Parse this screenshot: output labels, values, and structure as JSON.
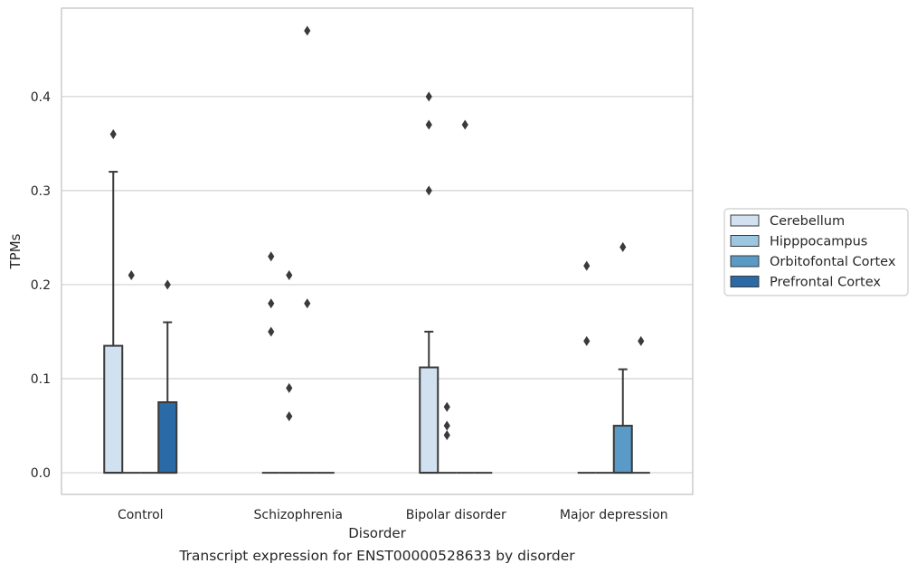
{
  "caption": "Transcript expression for ENST00000528633 by disorder",
  "chart_data": {
    "type": "box",
    "title": "",
    "xlabel": "Disorder",
    "ylabel": "TPMs",
    "ylim": [
      -0.023,
      0.494
    ],
    "yticks": [
      0.0,
      0.1,
      0.2,
      0.3,
      0.4
    ],
    "ytick_labels": [
      "0.0",
      "0.1",
      "0.2",
      "0.3",
      "0.4"
    ],
    "grid": "horizontal",
    "legend_position": "right",
    "categories": [
      "Control",
      "Schizophrenia",
      "Bipolar disorder",
      "Major depression"
    ],
    "series": [
      {
        "name": "Cerebellum",
        "color": "#d1e1ef",
        "boxes": [
          {
            "q1": 0.0,
            "median": 0.0,
            "q3": 0.135,
            "whislo": 0.0,
            "whishi": 0.32,
            "fliers": [
              0.36
            ]
          },
          {
            "q1": 0.0,
            "median": 0.0,
            "q3": 0.0,
            "whislo": 0.0,
            "whishi": 0.0,
            "fliers": [
              0.23,
              0.18,
              0.15
            ]
          },
          {
            "q1": 0.0,
            "median": 0.0,
            "q3": 0.112,
            "whislo": 0.0,
            "whishi": 0.15,
            "fliers": [
              0.4,
              0.37,
              0.3
            ]
          },
          {
            "q1": 0.0,
            "median": 0.0,
            "q3": 0.0,
            "whislo": 0.0,
            "whishi": 0.0,
            "fliers": [
              0.22,
              0.14
            ]
          }
        ]
      },
      {
        "name": "Hipppocampus",
        "color": "#9dc6e0",
        "boxes": [
          {
            "q1": 0.0,
            "median": 0.0,
            "q3": 0.0,
            "whislo": 0.0,
            "whishi": 0.0,
            "fliers": [
              0.21
            ]
          },
          {
            "q1": 0.0,
            "median": 0.0,
            "q3": 0.0,
            "whislo": 0.0,
            "whishi": 0.0,
            "fliers": [
              0.21,
              0.09,
              0.06
            ]
          },
          {
            "q1": 0.0,
            "median": 0.0,
            "q3": 0.0,
            "whislo": 0.0,
            "whishi": 0.0,
            "fliers": [
              0.07,
              0.05,
              0.04
            ]
          },
          {
            "q1": 0.0,
            "median": 0.0,
            "q3": 0.0,
            "whislo": 0.0,
            "whishi": 0.0,
            "fliers": []
          }
        ]
      },
      {
        "name": "Orbitofontal Cortex",
        "color": "#5a9ac6",
        "boxes": [
          {
            "q1": 0.0,
            "median": 0.0,
            "q3": 0.0,
            "whislo": 0.0,
            "whishi": 0.0,
            "fliers": []
          },
          {
            "q1": 0.0,
            "median": 0.0,
            "q3": 0.0,
            "whislo": 0.0,
            "whishi": 0.0,
            "fliers": [
              0.47,
              0.18
            ]
          },
          {
            "q1": 0.0,
            "median": 0.0,
            "q3": 0.0,
            "whislo": 0.0,
            "whishi": 0.0,
            "fliers": [
              0.37
            ]
          },
          {
            "q1": 0.0,
            "median": 0.0,
            "q3": 0.05,
            "whislo": 0.0,
            "whishi": 0.11,
            "fliers": [
              0.24
            ]
          }
        ]
      },
      {
        "name": "Prefrontal Cortex",
        "color": "#2a6aa6",
        "boxes": [
          {
            "q1": 0.0,
            "median": 0.0,
            "q3": 0.075,
            "whislo": 0.0,
            "whishi": 0.16,
            "fliers": [
              0.2
            ]
          },
          {
            "q1": 0.0,
            "median": 0.0,
            "q3": 0.0,
            "whislo": 0.0,
            "whishi": 0.0,
            "fliers": []
          },
          {
            "q1": 0.0,
            "median": 0.0,
            "q3": 0.0,
            "whislo": 0.0,
            "whishi": 0.0,
            "fliers": []
          },
          {
            "q1": 0.0,
            "median": 0.0,
            "q3": 0.0,
            "whislo": 0.0,
            "whishi": 0.0,
            "fliers": [
              0.14
            ]
          }
        ]
      }
    ]
  }
}
